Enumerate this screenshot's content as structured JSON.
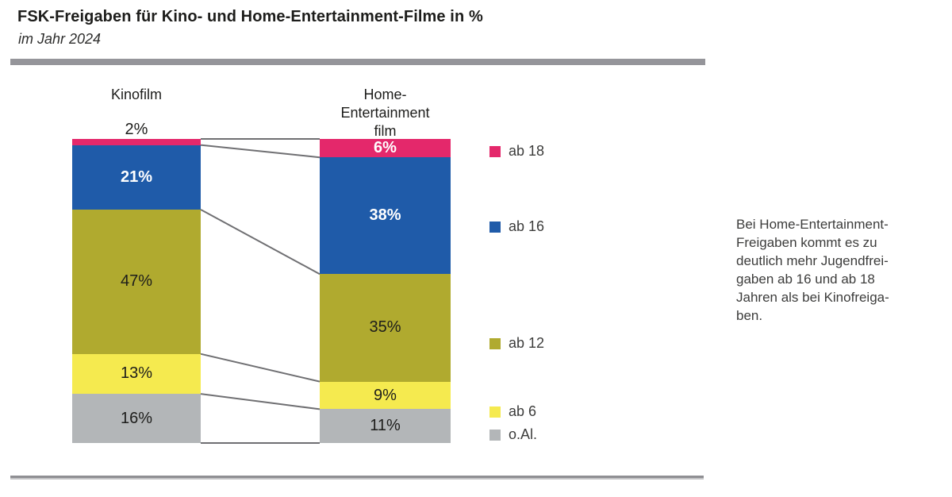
{
  "page": {
    "title": "FSK-Freigaben für Kino- und Home-Entertainment-Filme in %",
    "subtitle": "im Jahr 2024"
  },
  "chart_data": {
    "type": "bar",
    "stacked": true,
    "title": "FSK-Freigaben für Kino- und Home-Entertainment-Filme in %",
    "subtitle": "im Jahr 2024",
    "unit": "%",
    "categories": [
      "ab 18",
      "ab 16",
      "ab 12",
      "ab 6",
      "o.Al."
    ],
    "colors": {
      "ab 18": "#e4286b",
      "ab 16": "#1f5ba9",
      "ab 12": "#b0aa2f",
      "ab 6": "#f5ea4f",
      "o.Al.": "#b3b6b8"
    },
    "series": [
      {
        "name": "Kinofilm",
        "label_lines": [
          "Kinofilm"
        ],
        "values": [
          2,
          21,
          47,
          13,
          16
        ]
      },
      {
        "name": "Home-Entertainmentfilm",
        "label_lines": [
          "Home-Entertainment",
          "film"
        ],
        "values": [
          6,
          38,
          35,
          9,
          11
        ]
      }
    ],
    "value_label_format": "{v}%",
    "legend": {
      "position": "right",
      "entries": [
        "ab 18",
        "ab 16",
        "ab 12",
        "ab 6",
        "o.Al."
      ]
    },
    "annotation": "Bei Home-Entertainment-Freigaben kommt es zu deutlich mehr Jugendfreigaben ab 16 und ab 18 Jahren als bei Kinofreigaben.",
    "annotation_lines": [
      "Bei Home-Entertainment-",
      "Freigaben kommt es zu",
      "deutlich mehr Jugendfrei-",
      "gaben ab 16 und ab 18",
      "Jahren als bei Kinofreiga-",
      "ben."
    ]
  }
}
